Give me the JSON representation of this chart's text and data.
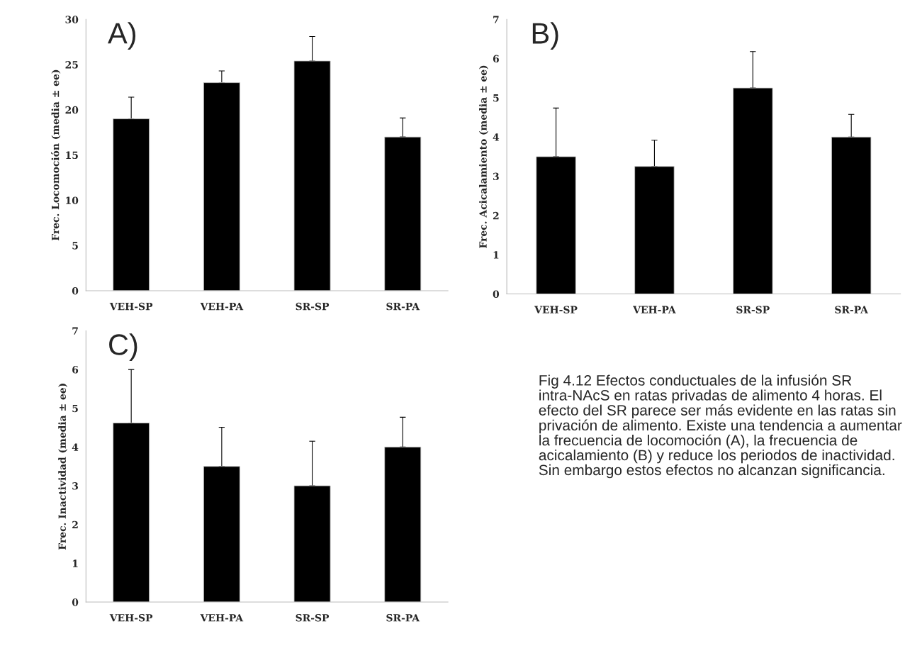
{
  "chart_data": [
    {
      "type": "bar",
      "title": "A)",
      "ylabel": "Frec. Locomoción (media ± ee)",
      "categories": [
        "VEH-SP",
        "VEH-PA",
        "SR-SP",
        "SR-PA"
      ],
      "series": [
        {
          "color": "#000000",
          "values": [
            19,
            23,
            25.4,
            17.0
          ],
          "errors": [
            [
              19,
              21.4
            ],
            [
              23,
              24.3
            ],
            [
              25.4,
              28.1
            ],
            [
              17.0,
              19.1
            ]
          ]
        }
      ],
      "ylim": [
        0,
        30
      ],
      "yticks": [
        0,
        5,
        10,
        15,
        20,
        25,
        30
      ],
      "grid": false,
      "legend": false
    },
    {
      "type": "bar",
      "title": "B)",
      "ylabel": "Frec. Acicalamiento (media ± ee)",
      "categories": [
        "VEH-SP",
        "VEH-PA",
        "SR-SP",
        "SR-PA"
      ],
      "series": [
        {
          "color": "#000000",
          "values": [
            3.5,
            3.25,
            5.25,
            4.0
          ],
          "errors": [
            [
              3.5,
              4.74
            ],
            [
              3.25,
              3.92
            ],
            [
              5.25,
              6.18
            ],
            [
              4.0,
              4.58
            ]
          ]
        }
      ],
      "ylim": [
        0,
        7
      ],
      "yticks": [
        0,
        1,
        2,
        3,
        4,
        5,
        6,
        7
      ],
      "grid": false,
      "legend": false
    },
    {
      "type": "bar",
      "title": "C)",
      "ylabel": "Frec. Inactividad (media ± ee)",
      "categories": [
        "VEH-SP",
        "VEH-PA",
        "SR-SP",
        "SR-PA"
      ],
      "series": [
        {
          "color": "#000000",
          "values": [
            4.62,
            3.5,
            3.0,
            4.0
          ],
          "errors": [
            [
              4.62,
              6.0
            ],
            [
              3.5,
              4.51
            ],
            [
              3.0,
              4.15
            ],
            [
              4.0,
              4.77
            ]
          ]
        }
      ],
      "ylim": [
        0,
        7
      ],
      "yticks": [
        0,
        1,
        2,
        3,
        4,
        5,
        6,
        7
      ],
      "grid": false,
      "legend": false,
      "annotations": [
        "Fig 4.12 Efectos conductuales de la infusión SR intra-NAcS en ratas privadas de alimento 4 horas. El efecto del SR parece ser más evidente en las ratas sin privación de alimento. Existe una tendencia a aumentar la frecuencia de locomoción (A), la frecuencia de acicalamiento (B) y reduce los periodos de inactividad. Sin embargo estos efectos no alcanzan significancia."
      ]
    }
  ]
}
